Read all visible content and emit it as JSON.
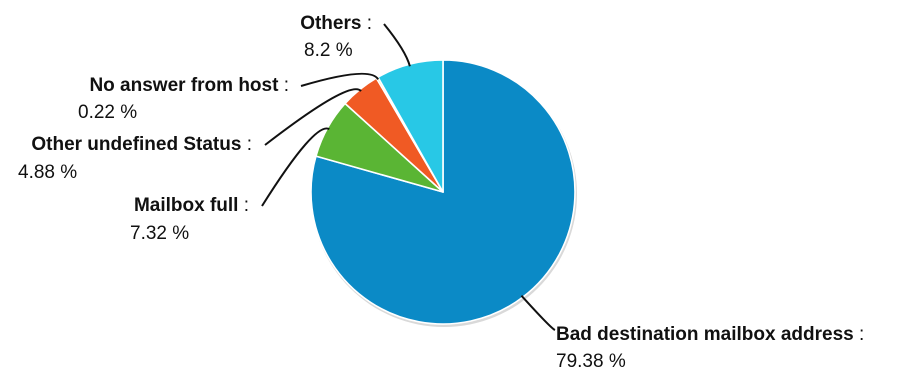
{
  "chart_data": {
    "type": "pie",
    "title": "",
    "separator": ":",
    "unit": "%",
    "slices": [
      {
        "label": "Bad destination mailbox address",
        "value": 79.38,
        "value_text": "79.38 %",
        "color": "#0b8ac6"
      },
      {
        "label": "Mailbox full",
        "value": 7.32,
        "value_text": "7.32 %",
        "color": "#5ab534"
      },
      {
        "label": "Other undefined Status",
        "value": 4.88,
        "value_text": "4.88 %",
        "color": "#f05a24"
      },
      {
        "label": "No answer from host",
        "value": 0.22,
        "value_text": "0.22 %",
        "color": "#c2d100"
      },
      {
        "label": "Others",
        "value": 8.2,
        "value_text": "8.2 %",
        "color": "#28c8e6"
      }
    ],
    "start_angle": "12 o'clock",
    "direction": "clockwise",
    "legend": "none",
    "labels": "outside with leader lines"
  }
}
